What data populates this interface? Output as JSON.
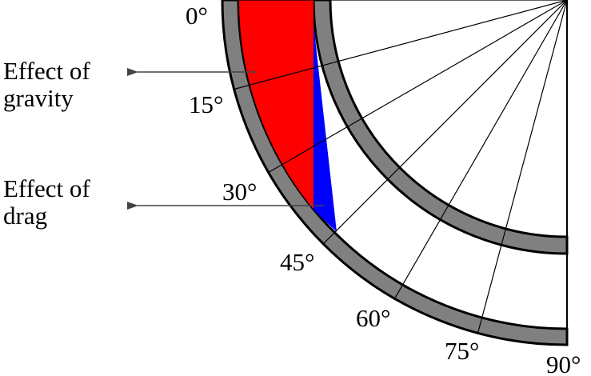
{
  "angle_labels": [
    "0°",
    "15°",
    "30°",
    "45°",
    "60°",
    "75°",
    "90°"
  ],
  "annotations": {
    "gravity": [
      "Effect of",
      "gravity"
    ],
    "drag": [
      "Effect of",
      "drag"
    ]
  }
}
